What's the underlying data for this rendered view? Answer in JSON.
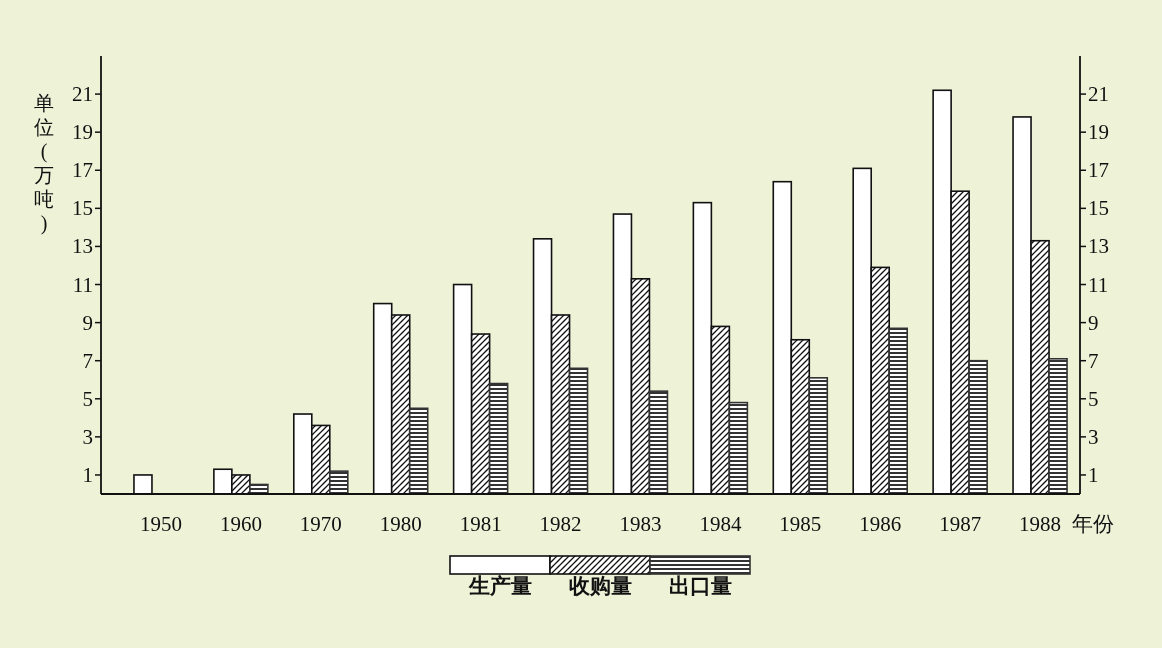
{
  "chart_data": {
    "type": "bar",
    "ylabel": "单位(万吨)",
    "xlabel": "年份",
    "categories": [
      "1950",
      "1960",
      "1970",
      "1980",
      "1981",
      "1982",
      "1983",
      "1984",
      "1985",
      "1986",
      "1987",
      "1988"
    ],
    "series": [
      {
        "name": "生产量",
        "color": "#ffffff",
        "values": [
          1.0,
          1.3,
          4.2,
          10.0,
          11.0,
          13.4,
          14.7,
          15.3,
          16.4,
          17.1,
          21.2,
          19.8
        ]
      },
      {
        "name": "收购量",
        "color": "#111111",
        "values": [
          null,
          1.0,
          3.6,
          9.4,
          8.4,
          9.4,
          11.3,
          8.8,
          8.1,
          11.9,
          15.9,
          13.3
        ]
      },
      {
        "name": "出口量",
        "color": "#333333",
        "values": [
          null,
          0.5,
          1.2,
          4.5,
          5.8,
          6.6,
          5.4,
          4.8,
          6.1,
          8.7,
          7.0,
          7.1
        ]
      }
    ],
    "ylim": [
      0,
      23
    ],
    "yticks": [
      1,
      3,
      5,
      7,
      9,
      11,
      13,
      15,
      17,
      19,
      21
    ],
    "y2lim": [
      0,
      23
    ],
    "y2ticks": [
      1,
      3,
      5,
      7,
      9,
      11,
      13,
      15,
      17,
      19,
      21
    ],
    "legend": "bottom"
  }
}
